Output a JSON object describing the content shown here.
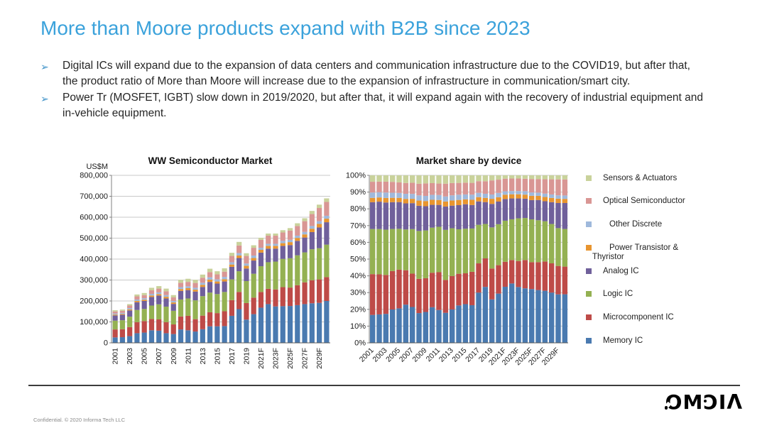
{
  "slide": {
    "title": "More than Moore products expand with B2B since 2023",
    "bullets": [
      "Digital ICs will expand due to the expansion of data centers and communication infrastructure due to the COVID19, but after that, the product ratio of More than Moore will increase due to the expansion of infrastructure in communication/smart city.",
      "Power Tr (MOSFET, IGBT) slow down in 2019/2020, but after that, it will expand again with the recovery of industrial equipment and in-vehicle equipment."
    ],
    "bullet_marker": "➢",
    "footer": "Confidential. © 2020 Informa Tech LLC",
    "logo_glyphs": [
      "O",
      "M",
      "Ɔ",
      "I",
      "Λ"
    ],
    "accent_color": "#3BA2DB"
  },
  "chart_data": [
    {
      "type": "bar",
      "stacked": true,
      "title": "WW Semiconductor Market",
      "ylabel": "US$M",
      "ylim": [
        0,
        800000
      ],
      "ytick_step": 100000,
      "xtick_every": 2,
      "grid": true,
      "categories": [
        "2001",
        "2002",
        "2003",
        "2004",
        "2005",
        "2006",
        "2007",
        "2008",
        "2009",
        "2010",
        "2011",
        "2012",
        "2013",
        "2014",
        "2015",
        "2016",
        "2017",
        "2018",
        "2019",
        "2020",
        "2021F",
        "2022F",
        "2023F",
        "2024F",
        "2025F",
        "2026F",
        "2027F",
        "2028F",
        "2029F",
        "2030F"
      ],
      "series": [
        {
          "name": "Memory IC",
          "color": "#4A7AB0",
          "values": [
            26000,
            27000,
            32000,
            46000,
            49000,
            60000,
            58000,
            46000,
            42000,
            64000,
            60000,
            54000,
            65000,
            79000,
            79000,
            80000,
            129000,
            161000,
            111000,
            137000,
            168000,
            185000,
            174000,
            175000,
            176000,
            180000,
            185000,
            189000,
            191000,
            200000
          ]
        },
        {
          "name": "Microcomponent IC",
          "color": "#BE4B48",
          "values": [
            38000,
            38000,
            43000,
            53000,
            55000,
            54000,
            54000,
            53000,
            46000,
            62000,
            69000,
            59000,
            65000,
            67000,
            63000,
            71000,
            75000,
            82000,
            79000,
            79000,
            75000,
            73000,
            81000,
            91000,
            88000,
            95000,
            104000,
            110000,
            112000,
            114000
          ]
        },
        {
          "name": "Logic IC",
          "color": "#94B152",
          "values": [
            42000,
            43000,
            50000,
            58000,
            58000,
            64000,
            72000,
            74000,
            65000,
            81000,
            83000,
            90000,
            93000,
            94000,
            91000,
            92000,
            99000,
            99000,
            105000,
            114000,
            123000,
            127000,
            133000,
            135000,
            140000,
            143000,
            143000,
            148000,
            149000,
            155000
          ]
        },
        {
          "name": "Analog IC",
          "color": "#70609B",
          "values": [
            25000,
            26000,
            30000,
            37000,
            38000,
            41000,
            42000,
            39000,
            33000,
            41000,
            40000,
            42000,
            44000,
            51000,
            50000,
            50000,
            60000,
            63000,
            60000,
            63000,
            65000,
            65000,
            62000,
            62000,
            63000,
            69000,
            71000,
            82000,
            99000,
            107000
          ]
        },
        {
          "name": "Power Transistor & Thyristor",
          "color": "#E8952F",
          "values": [
            4000,
            4000,
            5000,
            6000,
            6000,
            7000,
            7000,
            8000,
            7000,
            9000,
            9000,
            9000,
            10000,
            11000,
            10000,
            11000,
            11000,
            12000,
            13000,
            12000,
            13000,
            13000,
            13000,
            13000,
            14000,
            14000,
            15000,
            16000,
            17000,
            17000
          ]
        },
        {
          "name": "Other Discrete",
          "color": "#9FB9DC",
          "values": [
            5000,
            5000,
            6000,
            7000,
            7000,
            8000,
            8000,
            8000,
            7000,
            9000,
            9000,
            9000,
            10000,
            11000,
            10000,
            11000,
            11000,
            12000,
            11000,
            12000,
            10000,
            10000,
            10000,
            11000,
            11000,
            11000,
            12000,
            13000,
            13000,
            14000
          ]
        },
        {
          "name": "Optical Semiconductor",
          "color": "#D99694",
          "values": [
            10000,
            10000,
            12000,
            15000,
            15000,
            17000,
            18000,
            18000,
            17000,
            21000,
            21000,
            23000,
            24000,
            25000,
            24000,
            25000,
            30000,
            36000,
            36000,
            37000,
            38000,
            39000,
            39000,
            40000,
            44000,
            46000,
            51000,
            57000,
            63000,
            66000
          ]
        },
        {
          "name": "Sensors & Actuators",
          "color": "#C9D29B",
          "values": [
            6000,
            6000,
            7000,
            9000,
            10000,
            12000,
            12000,
            13000,
            11000,
            14000,
            15000,
            15000,
            15000,
            16000,
            15000,
            16000,
            15000,
            17000,
            13000,
            12000,
            10000,
            10000,
            10000,
            11000,
            12000,
            13000,
            14000,
            15000,
            16000,
            17000
          ]
        }
      ]
    },
    {
      "type": "bar",
      "stacked": true,
      "normalized": true,
      "title": "Market share by device",
      "ylim": [
        0,
        100
      ],
      "ytick_step": 10,
      "ytick_suffix": "%",
      "xtick_every": 2,
      "grid": true,
      "series_from_chart": 0
    }
  ],
  "legend": {
    "items": [
      {
        "label": "Sensors & Actuators",
        "color": "#C9D29B",
        "indent": 0
      },
      {
        "label": "Optical Semiconductor",
        "color": "#D99694",
        "indent": 0
      },
      {
        "label": "Other Discrete",
        "color": "#9FB9DC",
        "indent": 9
      },
      {
        "label": "Power Transistor &",
        "line2": "Thyristor",
        "color": "#E8952F",
        "indent": 9
      },
      {
        "label": "Analog IC",
        "color": "#70609B",
        "indent": 0
      },
      {
        "label": "Logic IC",
        "color": "#94B152",
        "indent": 0
      },
      {
        "label": "Microcomponent IC",
        "color": "#BE4B48",
        "indent": 0
      },
      {
        "label": "Memory IC",
        "color": "#4A7AB0",
        "indent": 0
      }
    ]
  }
}
